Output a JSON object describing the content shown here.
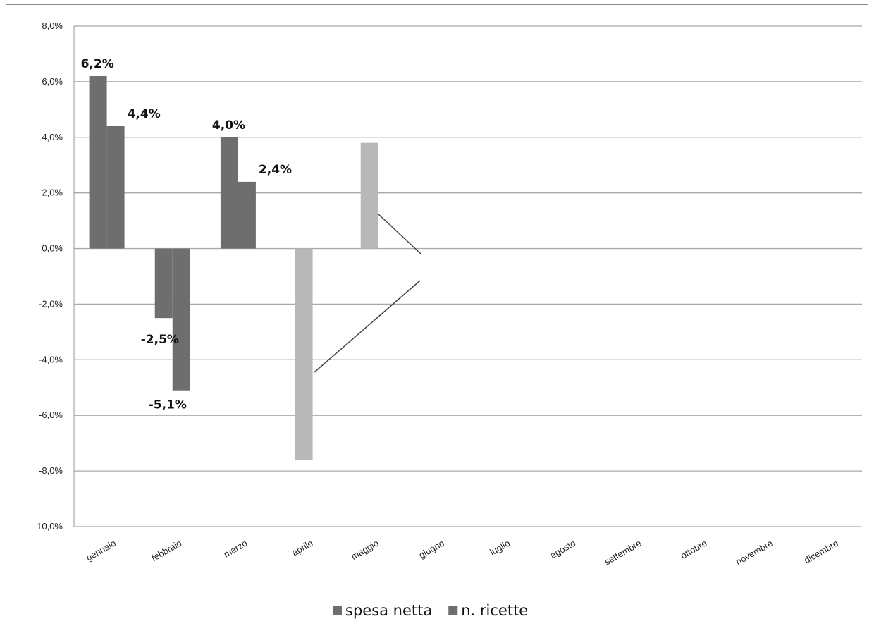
{
  "chart_data": {
    "type": "bar",
    "title": "",
    "xlabel": "",
    "ylabel": "",
    "ylim": [
      -10,
      8
    ],
    "yticks": [
      8,
      6,
      4,
      2,
      0,
      -2,
      -4,
      -6,
      -8,
      -10
    ],
    "ytick_labels": [
      "8,0%",
      "6,0%",
      "4,0%",
      "2,0%",
      "0,0%",
      "-2,0%",
      "-4,0%",
      "-6,0%",
      "-8,0%",
      "-10,0%"
    ],
    "grid": true,
    "legend_position": "bottom",
    "categories": [
      "gennaio",
      "febbraio",
      "marzo",
      "aprile",
      "maggio",
      "giugno",
      "luglio",
      "agosto",
      "settembre",
      "ottobre",
      "novembre",
      "dicembre"
    ],
    "series": [
      {
        "name": "spesa netta",
        "values": [
          6.2,
          -2.5,
          4.0,
          -7.6,
          3.8,
          null,
          null,
          null,
          null,
          null,
          null,
          null
        ],
        "data_labels": [
          "6,2%",
          "-2,5%",
          "4,0%",
          "",
          "",
          "",
          "",
          "",
          "",
          "",
          "",
          ""
        ],
        "color": "#6e6e6e",
        "highlight_color": "#b8b8b8"
      },
      {
        "name": "n. ricette",
        "values": [
          4.4,
          -5.1,
          2.4,
          null,
          null,
          null,
          null,
          null,
          null,
          null,
          null,
          null
        ],
        "data_labels": [
          "4,4%",
          "-5,1%",
          "2,4%",
          "",
          "",
          "",
          "",
          "",
          "",
          "",
          "",
          ""
        ],
        "color": "#6e6e6e"
      }
    ],
    "highlighted_bars": [
      "aprile",
      "maggio"
    ],
    "annotations": [
      "line from maggio bar to aprile bar"
    ]
  }
}
